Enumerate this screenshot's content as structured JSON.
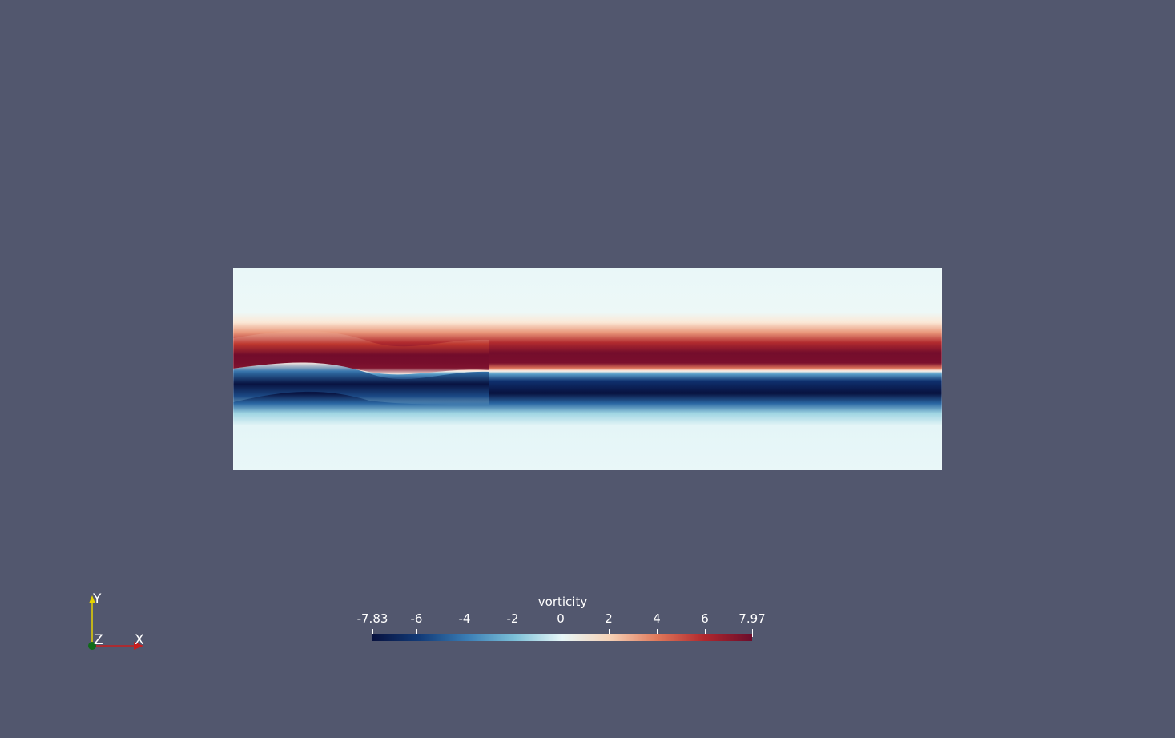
{
  "colormap": {
    "title": "vorticity",
    "range": [
      -7.83,
      7.97
    ],
    "tick_labels": [
      "-7.83",
      "-6",
      "-4",
      "-2",
      "0",
      "2",
      "4",
      "6",
      "7.97"
    ],
    "tick_values": [
      -7.83,
      -6,
      -4,
      -2,
      0,
      2,
      4,
      6,
      7.97
    ],
    "colors": [
      "#08123f",
      "#123b78",
      "#3a7db5",
      "#7cc0d8",
      "#e8f7f8",
      "#f6d2b7",
      "#e0785a",
      "#b0272d",
      "#6b0d2c"
    ]
  },
  "axes": {
    "x_label": "X",
    "y_label": "Y",
    "z_label": "Z",
    "x_color": "#c81e1e",
    "y_color": "#e6d400",
    "z_color": "#0e6b18"
  },
  "background_color": "#52576e"
}
